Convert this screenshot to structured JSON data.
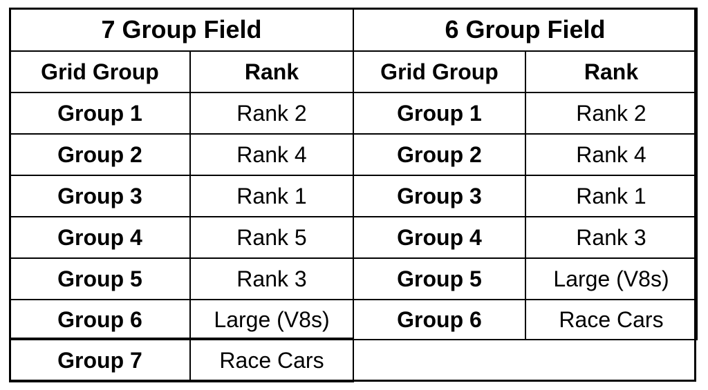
{
  "tables": [
    {
      "title": "7 Group Field",
      "headers": [
        "Grid Group",
        "Rank"
      ],
      "rows": [
        [
          "Group 1",
          "Rank 2"
        ],
        [
          "Group 2",
          "Rank 4"
        ],
        [
          "Group 3",
          "Rank 1"
        ],
        [
          "Group 4",
          "Rank 5"
        ],
        [
          "Group 5",
          "Rank 3"
        ],
        [
          "Group 6",
          "Large (V8s)"
        ],
        [
          "Group 7",
          "Race Cars"
        ]
      ]
    },
    {
      "title": "6 Group Field",
      "headers": [
        "Grid Group",
        "Rank"
      ],
      "rows": [
        [
          "Group 1",
          "Rank 2"
        ],
        [
          "Group 2",
          "Rank 4"
        ],
        [
          "Group 3",
          "Rank 1"
        ],
        [
          "Group 4",
          "Rank 3"
        ],
        [
          "Group 5",
          "Large (V8s)"
        ],
        [
          "Group 6",
          "Race Cars"
        ]
      ]
    }
  ]
}
